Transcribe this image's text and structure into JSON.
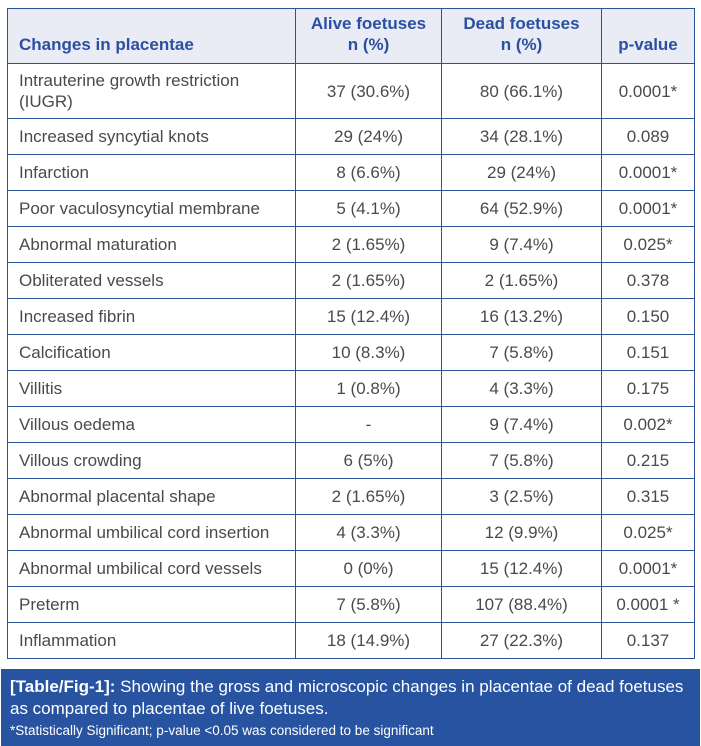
{
  "header": {
    "columns": [
      "Changes in placentae",
      "Alive foetuses\nn (%)",
      "Dead foetuses\nn (%)",
      "p-value"
    ]
  },
  "rows": [
    {
      "change": "Intrauterine growth restriction (IUGR)",
      "alive": "37 (30.6%)",
      "dead": "80 (66.1%)",
      "p": "0.0001*"
    },
    {
      "change": "Increased syncytial knots",
      "alive": "29 (24%)",
      "dead": "34 (28.1%)",
      "p": "0.089"
    },
    {
      "change": "Infarction",
      "alive": "8 (6.6%)",
      "dead": "29 (24%)",
      "p": "0.0001*"
    },
    {
      "change": "Poor vaculosyncytial membrane",
      "alive": "5 (4.1%)",
      "dead": "64 (52.9%)",
      "p": "0.0001*"
    },
    {
      "change": "Abnormal maturation",
      "alive": "2 (1.65%)",
      "dead": "9 (7.4%)",
      "p": "0.025*"
    },
    {
      "change": "Obliterated vessels",
      "alive": "2 (1.65%)",
      "dead": "2 (1.65%)",
      "p": "0.378"
    },
    {
      "change": "Increased fibrin",
      "alive": "15 (12.4%)",
      "dead": "16 (13.2%)",
      "p": "0.150"
    },
    {
      "change": "Calcification",
      "alive": "10 (8.3%)",
      "dead": "7 (5.8%)",
      "p": "0.151"
    },
    {
      "change": "Villitis",
      "alive": "1 (0.8%)",
      "dead": "4 (3.3%)",
      "p": "0.175"
    },
    {
      "change": "Villous oedema",
      "alive": "-",
      "dead": "9 (7.4%)",
      "p": "0.002*"
    },
    {
      "change": "Villous crowding",
      "alive": "6 (5%)",
      "dead": "7 (5.8%)",
      "p": "0.215"
    },
    {
      "change": "Abnormal placental shape",
      "alive": "2 (1.65%)",
      "dead": "3 (2.5%)",
      "p": "0.315"
    },
    {
      "change": "Abnormal umbilical cord insertion",
      "alive": "4 (3.3%)",
      "dead": "12 (9.9%)",
      "p": "0.025*"
    },
    {
      "change": "Abnormal umbilical cord vessels",
      "alive": "0 (0%)",
      "dead": "15 (12.4%)",
      "p": "0.0001*"
    },
    {
      "change": "Preterm",
      "alive": "7 (5.8%)",
      "dead": "107 (88.4%)",
      "p": "0.0001 *"
    },
    {
      "change": "Inflammation",
      "alive": "18 (14.9%)",
      "dead": "27 (22.3%)",
      "p": "0.137"
    }
  ],
  "caption": {
    "label": "[Table/Fig-1]:",
    "text": " Showing the gross and microscopic changes in placentae of dead foetuses as compared to placentae of live foetuses.",
    "footnote": "*Statistically Significant; p-value <0.05 was considered to be significant"
  },
  "colors": {
    "header_bg": "#e9ebf5",
    "header_text": "#2b4fa2",
    "border": "#2b5396",
    "body_text": "#4a4a4a",
    "caption_bg": "#2853a0",
    "caption_text": "#ffffff",
    "page_bg": "#ffffff"
  }
}
